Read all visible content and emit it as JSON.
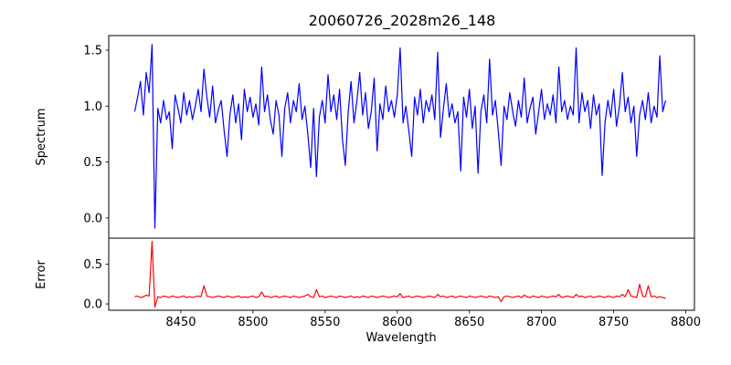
{
  "chart_data": {
    "type": "line",
    "title": "20060726_2028m26_148",
    "xlabel": "Wavelength",
    "x_start": 8418,
    "x_step": 2,
    "xlim": [
      8400,
      8806
    ],
    "xticks": [
      8450,
      8500,
      8550,
      8600,
      8650,
      8700,
      8750,
      8800
    ],
    "grid": false,
    "legend": "none",
    "panels": [
      {
        "name": "spectrum",
        "ylabel": "Spectrum",
        "ylim": [
          -0.18,
          1.63
        ],
        "yticks": [
          0.0,
          0.5,
          1.0,
          1.5
        ],
        "color": "#0000ff",
        "values": [
          0.95,
          1.08,
          1.22,
          0.92,
          1.3,
          1.12,
          1.55,
          -0.09,
          0.98,
          0.85,
          1.05,
          0.88,
          0.95,
          0.62,
          1.1,
          0.98,
          0.85,
          1.12,
          0.92,
          1.05,
          0.88,
          1.0,
          1.15,
          0.95,
          1.33,
          1.08,
          0.9,
          1.18,
          0.85,
          0.97,
          1.05,
          0.78,
          0.55,
          0.92,
          1.1,
          0.85,
          1.02,
          0.7,
          1.15,
          0.95,
          1.08,
          0.9,
          1.02,
          0.83,
          1.35,
          0.95,
          1.1,
          0.88,
          0.75,
          1.05,
          0.92,
          0.55,
          0.98,
          1.12,
          0.85,
          1.05,
          0.95,
          1.2,
          0.88,
          1.0,
          0.75,
          0.45,
          0.98,
          0.37,
          0.9,
          1.05,
          0.85,
          1.28,
          0.95,
          1.1,
          0.88,
          1.15,
          0.7,
          0.47,
          0.95,
          1.22,
          0.85,
          1.05,
          1.3,
          0.92,
          1.12,
          0.8,
          0.95,
          1.25,
          0.6,
          1.02,
          0.88,
          1.18,
          0.95,
          1.05,
          0.9,
          1.1,
          1.52,
          0.85,
          1.0,
          0.78,
          0.55,
          1.08,
          0.92,
          1.15,
          0.85,
          1.05,
          0.95,
          1.1,
          0.88,
          1.48,
          0.72,
          0.98,
          1.2,
          0.9,
          1.02,
          0.85,
          0.95,
          0.42,
          1.08,
          0.9,
          1.15,
          0.8,
          1.0,
          0.4,
          0.95,
          1.1,
          0.85,
          1.42,
          0.92,
          1.05,
          0.78,
          0.47,
          1.0,
          0.88,
          1.12,
          0.95,
          0.82,
          1.05,
          0.9,
          1.25,
          0.85,
          0.98,
          1.08,
          0.75,
          0.95,
          1.15,
          0.88,
          1.02,
          0.92,
          1.1,
          0.85,
          1.35,
          0.95,
          1.05,
          0.88,
          1.0,
          0.92,
          1.52,
          0.85,
          1.12,
          0.95,
          1.05,
          0.8,
          1.1,
          0.92,
          1.02,
          0.38,
          0.85,
          1.05,
          0.9,
          1.15,
          0.82,
          1.0,
          1.3,
          0.95,
          1.08,
          0.85,
          1.0,
          0.55,
          0.92,
          1.05,
          0.88,
          1.12,
          0.85,
          1.0,
          0.9,
          1.45,
          0.95,
          1.05
        ]
      },
      {
        "name": "error",
        "ylabel": "Error",
        "ylim": [
          -0.08,
          0.83
        ],
        "yticks": [
          0.0,
          0.5
        ],
        "color": "#ff0000",
        "values": [
          0.09,
          0.1,
          0.08,
          0.09,
          0.11,
          0.1,
          0.79,
          -0.04,
          0.09,
          0.08,
          0.1,
          0.09,
          0.08,
          0.1,
          0.09,
          0.08,
          0.09,
          0.1,
          0.08,
          0.09,
          0.08,
          0.09,
          0.1,
          0.09,
          0.23,
          0.1,
          0.09,
          0.08,
          0.09,
          0.1,
          0.09,
          0.08,
          0.1,
          0.09,
          0.08,
          0.09,
          0.1,
          0.08,
          0.09,
          0.08,
          0.09,
          0.1,
          0.08,
          0.09,
          0.15,
          0.09,
          0.1,
          0.08,
          0.09,
          0.1,
          0.08,
          0.09,
          0.1,
          0.09,
          0.08,
          0.1,
          0.09,
          0.08,
          0.09,
          0.1,
          0.12,
          0.09,
          0.08,
          0.18,
          0.09,
          0.1,
          0.08,
          0.09,
          0.1,
          0.09,
          0.08,
          0.1,
          0.09,
          0.08,
          0.09,
          0.1,
          0.08,
          0.09,
          0.08,
          0.1,
          0.09,
          0.08,
          0.1,
          0.09,
          0.08,
          0.09,
          0.1,
          0.09,
          0.08,
          0.09,
          0.1,
          0.09,
          0.13,
          0.08,
          0.09,
          0.1,
          0.08,
          0.09,
          0.1,
          0.09,
          0.08,
          0.09,
          0.1,
          0.09,
          0.08,
          0.12,
          0.09,
          0.1,
          0.08,
          0.09,
          0.1,
          0.08,
          0.09,
          0.1,
          0.09,
          0.08,
          0.1,
          0.09,
          0.08,
          0.09,
          0.1,
          0.09,
          0.08,
          0.1,
          0.09,
          0.08,
          0.09,
          0.03,
          0.09,
          0.1,
          0.09,
          0.08,
          0.09,
          0.1,
          0.08,
          0.11,
          0.09,
          0.08,
          0.1,
          0.09,
          0.08,
          0.1,
          0.09,
          0.08,
          0.09,
          0.1,
          0.09,
          0.12,
          0.08,
          0.09,
          0.1,
          0.09,
          0.08,
          0.12,
          0.09,
          0.1,
          0.08,
          0.09,
          0.1,
          0.08,
          0.09,
          0.1,
          0.09,
          0.08,
          0.1,
          0.09,
          0.08,
          0.1,
          0.09,
          0.12,
          0.09,
          0.18,
          0.1,
          0.09,
          0.08,
          0.25,
          0.1,
          0.09,
          0.23,
          0.09,
          0.1,
          0.08,
          0.09,
          0.08,
          0.07
        ]
      }
    ]
  }
}
